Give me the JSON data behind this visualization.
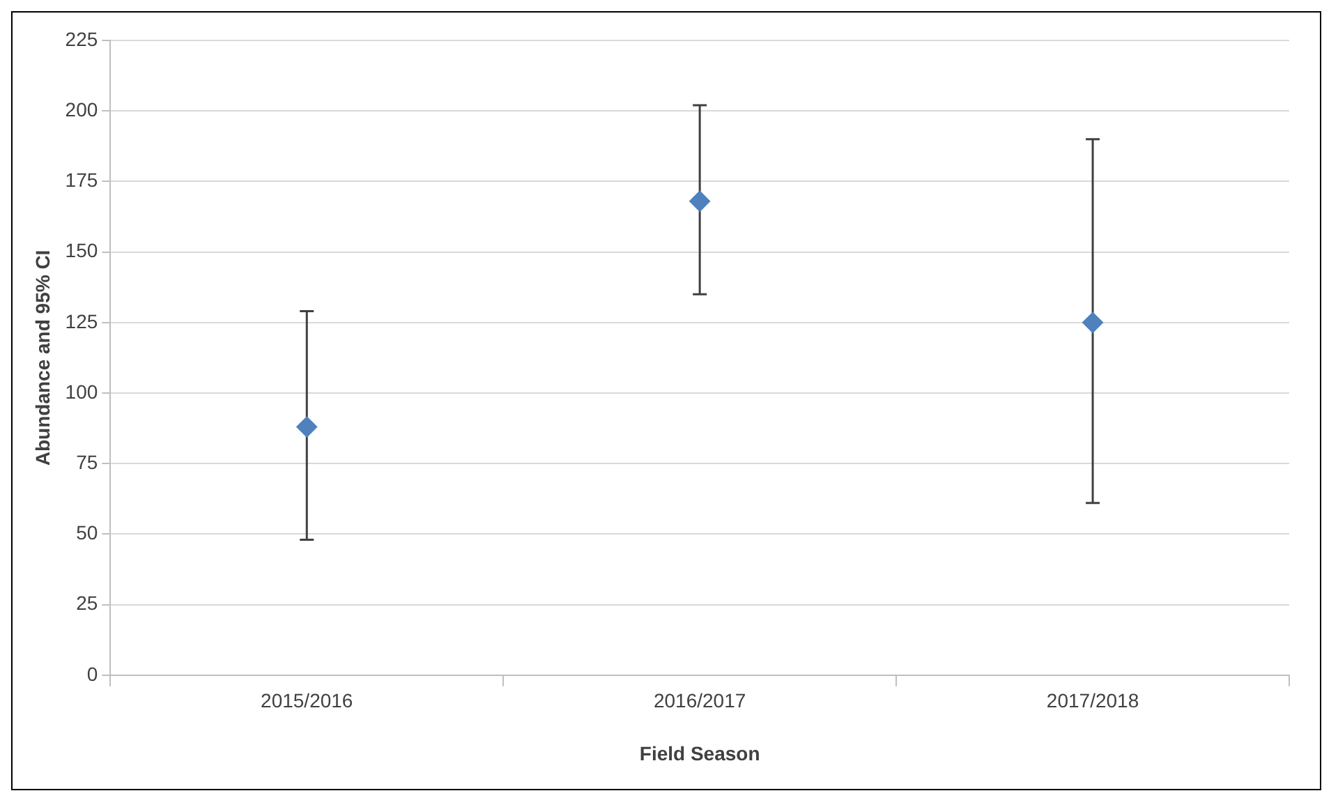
{
  "chart_data": {
    "type": "scatter",
    "xlabel": "Field Season",
    "ylabel": "Abundance and 95% CI",
    "categories": [
      "2015/2016",
      "2016/2017",
      "2017/2018"
    ],
    "series": [
      {
        "color": "#4f81bd",
        "values": [
          88,
          168,
          125
        ],
        "errors": [
          [
            48,
            129
          ],
          [
            135,
            202
          ],
          [
            61,
            190
          ]
        ]
      }
    ],
    "ylim": [
      0,
      225
    ],
    "yticks": [
      0,
      25,
      50,
      75,
      100,
      125,
      150,
      175,
      200,
      225
    ],
    "grid": "y",
    "legend": false,
    "marker": "diamond"
  }
}
